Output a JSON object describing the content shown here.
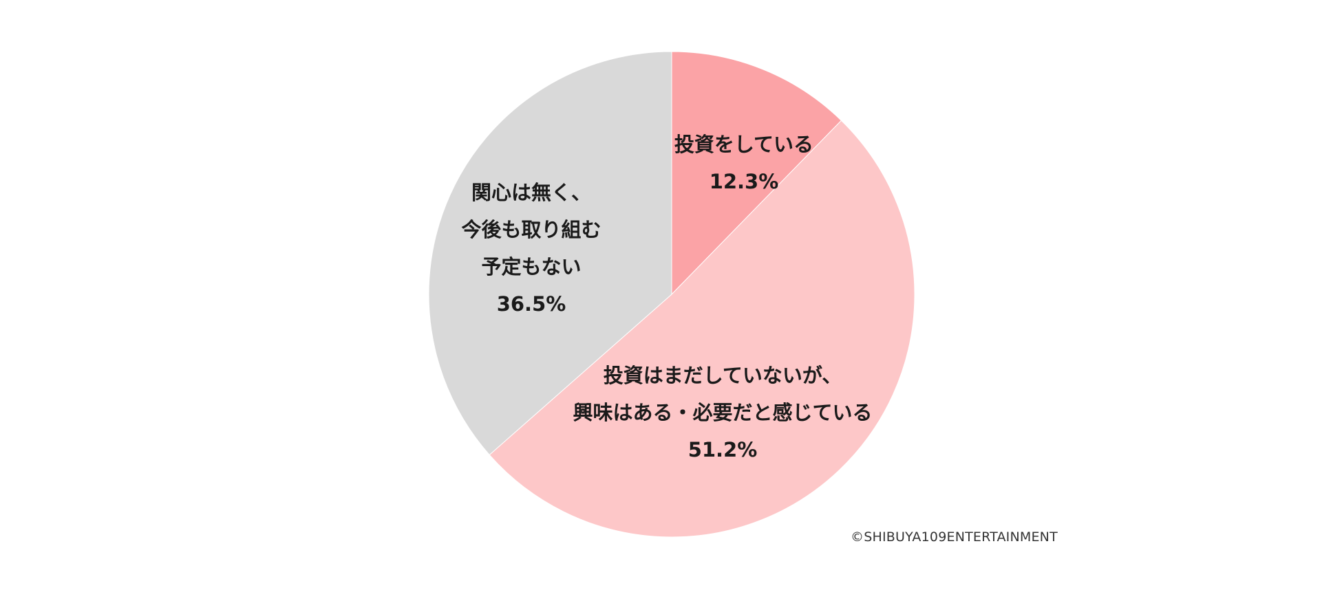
{
  "chart_data": {
    "type": "pie",
    "title": "",
    "start_angle_deg": 0,
    "direction": "clockwise",
    "slices": [
      {
        "label_lines": [
          "投資をしている"
        ],
        "value": 12.3,
        "value_label": "12.3%",
        "color": "#fba3a6"
      },
      {
        "label_lines": [
          "投資はまだしていないが、",
          "興味はある・必要だと感じている"
        ],
        "value": 51.2,
        "value_label": "51.2%",
        "color": "#fdc7c8"
      },
      {
        "label_lines": [
          "関心は無く、",
          "今後も取り組む",
          "予定もない"
        ],
        "value": 36.5,
        "value_label": "36.5%",
        "color": "#d9d9d9"
      }
    ]
  },
  "copyright": "©SHIBUYA109ENTERTAINMENT"
}
